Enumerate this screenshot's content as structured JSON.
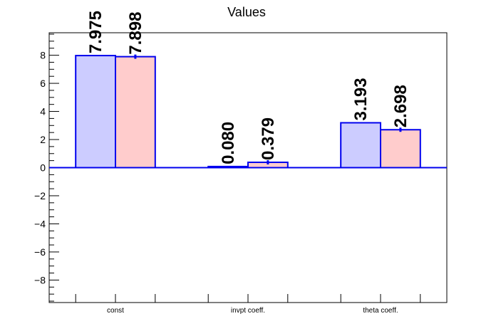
{
  "chart_data": {
    "type": "bar",
    "title": "Values",
    "xlabel": "",
    "ylabel": "",
    "categories": [
      "const",
      "invpt coeff.",
      "theta coeff."
    ],
    "ylim": [
      -9.6,
      9.6
    ],
    "y_ticks": [
      -8,
      -6,
      -4,
      -2,
      0,
      2,
      4,
      6,
      8
    ],
    "y_tick_labels": [
      "−8",
      "−6",
      "−4",
      "−2",
      "0",
      "2",
      "4",
      "6",
      "8"
    ],
    "grid": false,
    "legend": "none",
    "series": [
      {
        "color_fill": "#ccccff",
        "color_line": "#0000ee",
        "values": [
          7.975,
          0.08,
          3.193
        ],
        "errors": [
          0.0,
          0.0,
          0.0
        ],
        "labels": [
          "7.975",
          "0.080",
          "3.193"
        ]
      },
      {
        "color_fill": "#ffcccc",
        "color_line": "#0000ee",
        "values": [
          7.898,
          0.379,
          2.698
        ],
        "errors": [
          0.15,
          0.15,
          0.15
        ],
        "labels": [
          "7.898",
          "0.379",
          "2.698"
        ]
      }
    ]
  }
}
